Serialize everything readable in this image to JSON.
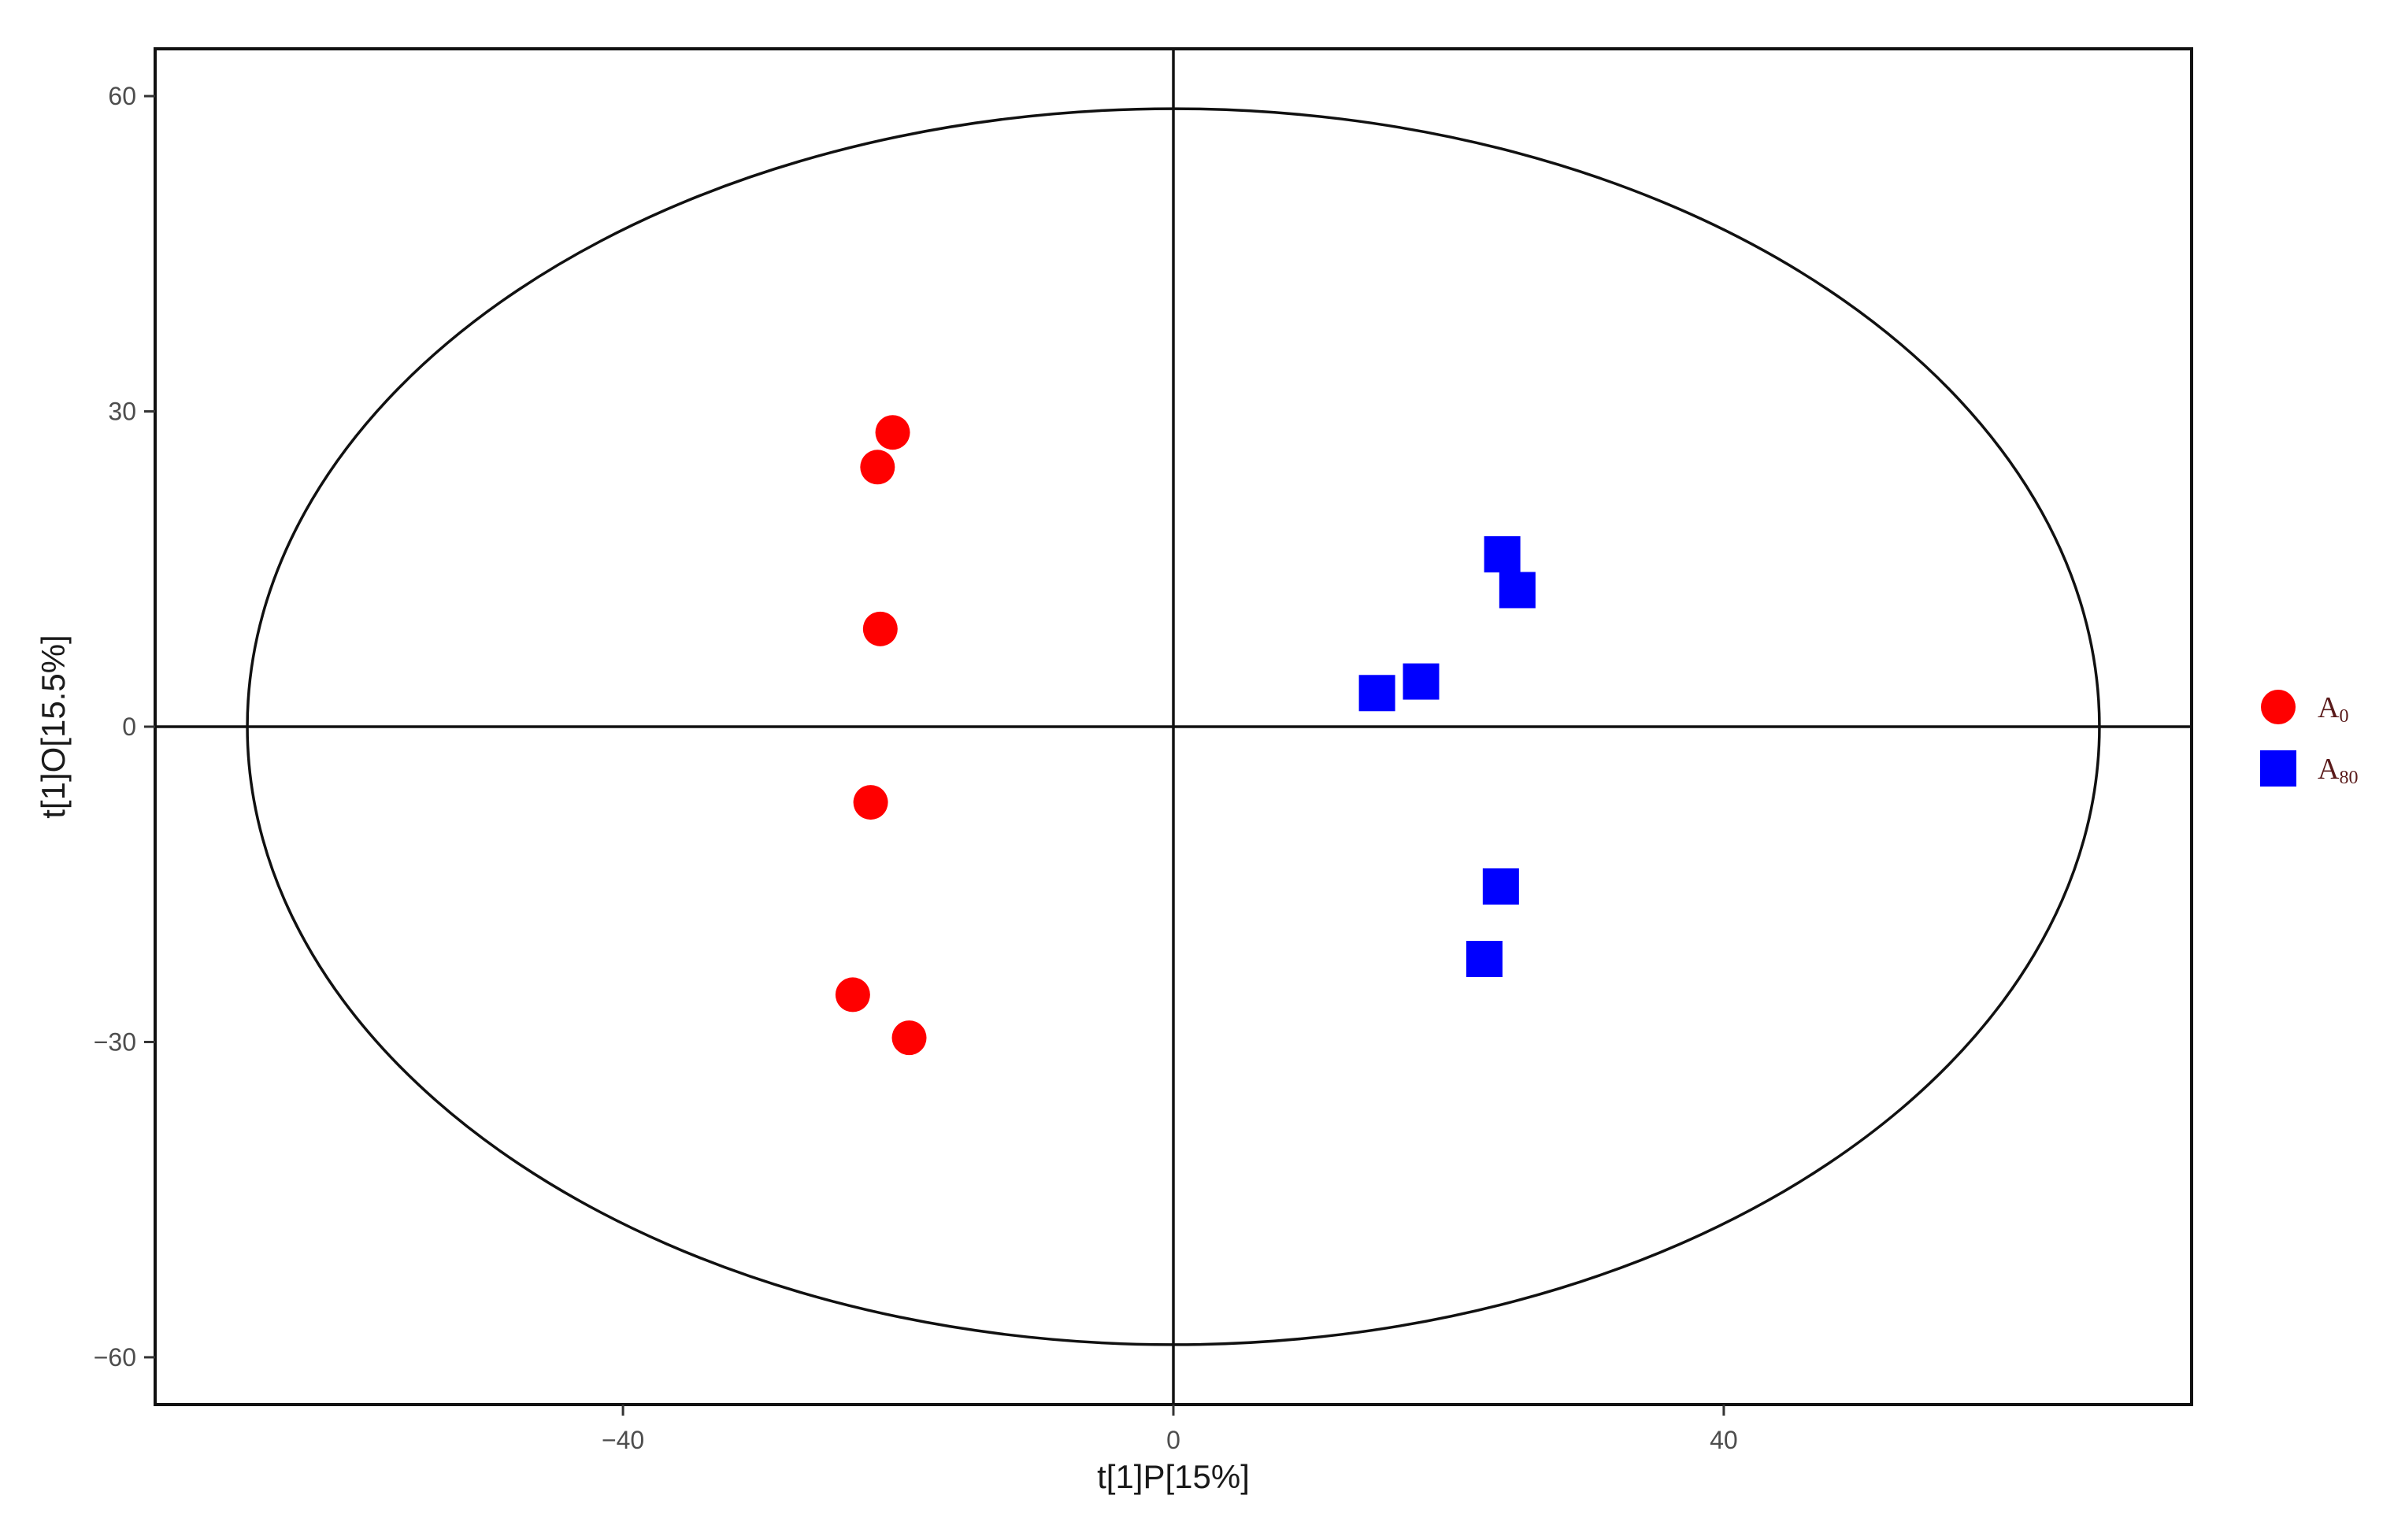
{
  "chart_data": {
    "type": "scatter",
    "xlabel": "t[1]P[15%]",
    "ylabel": "t[1]O[15.5%]",
    "xlim": [
      -74,
      74
    ],
    "ylim": [
      -64.5,
      64.5
    ],
    "x_ticks": [
      -40,
      0,
      40
    ],
    "y_ticks": [
      60,
      30,
      0,
      -30,
      -60
    ],
    "grid": false,
    "zero_lines": true,
    "confidence_ellipse": {
      "center": [
        0,
        0
      ],
      "rx": 67.3,
      "ry": 58.8
    },
    "legend_position": "right",
    "series": [
      {
        "name": "A",
        "name_subscript": "0",
        "marker": "circle",
        "color": "#ff0000",
        "points": [
          [
            -20.4,
            28.0
          ],
          [
            -21.5,
            24.7
          ],
          [
            -21.3,
            9.3
          ],
          [
            -22.0,
            -7.2
          ],
          [
            -23.3,
            -25.5
          ],
          [
            -19.2,
            -29.6
          ]
        ]
      },
      {
        "name": "A",
        "name_subscript": "80",
        "marker": "square",
        "color": "#0000ff",
        "points": [
          [
            23.9,
            16.4
          ],
          [
            25.0,
            13.0
          ],
          [
            18.0,
            4.3
          ],
          [
            14.8,
            3.2
          ],
          [
            23.8,
            -15.2
          ],
          [
            22.6,
            -22.1
          ]
        ]
      }
    ]
  }
}
